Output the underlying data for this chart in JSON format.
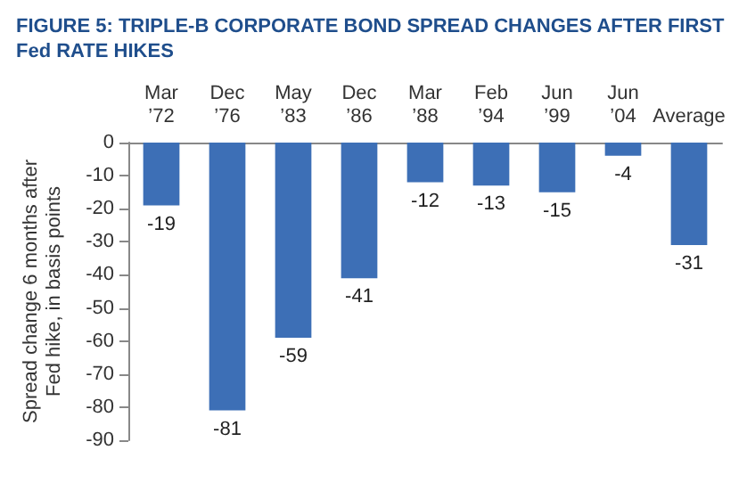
{
  "chart_data": {
    "type": "bar",
    "title": "FIGURE 5: TRIPLE-B CORPORATE BOND SPREAD CHANGES AFTER FIRST Fed RATE HIKES",
    "ylabel": "Spread change 6 months after Fed hike, in basis points",
    "categories": [
      "Mar ’72",
      "Dec ’76",
      "May ’83",
      "Dec ’86",
      "Mar ’88",
      "Feb ’94",
      "Jun ’99",
      "Jun ’04",
      "Average"
    ],
    "values": [
      -19,
      -81,
      -59,
      -41,
      -12,
      -13,
      -15,
      -4,
      -31
    ],
    "color": "#3d6fb6",
    "ylim": [
      -90,
      0
    ],
    "yticks": [
      -90,
      -80,
      -70,
      -60,
      -50,
      -40,
      -30,
      -20,
      -10,
      0
    ],
    "data_labels": true,
    "grid": false
  }
}
